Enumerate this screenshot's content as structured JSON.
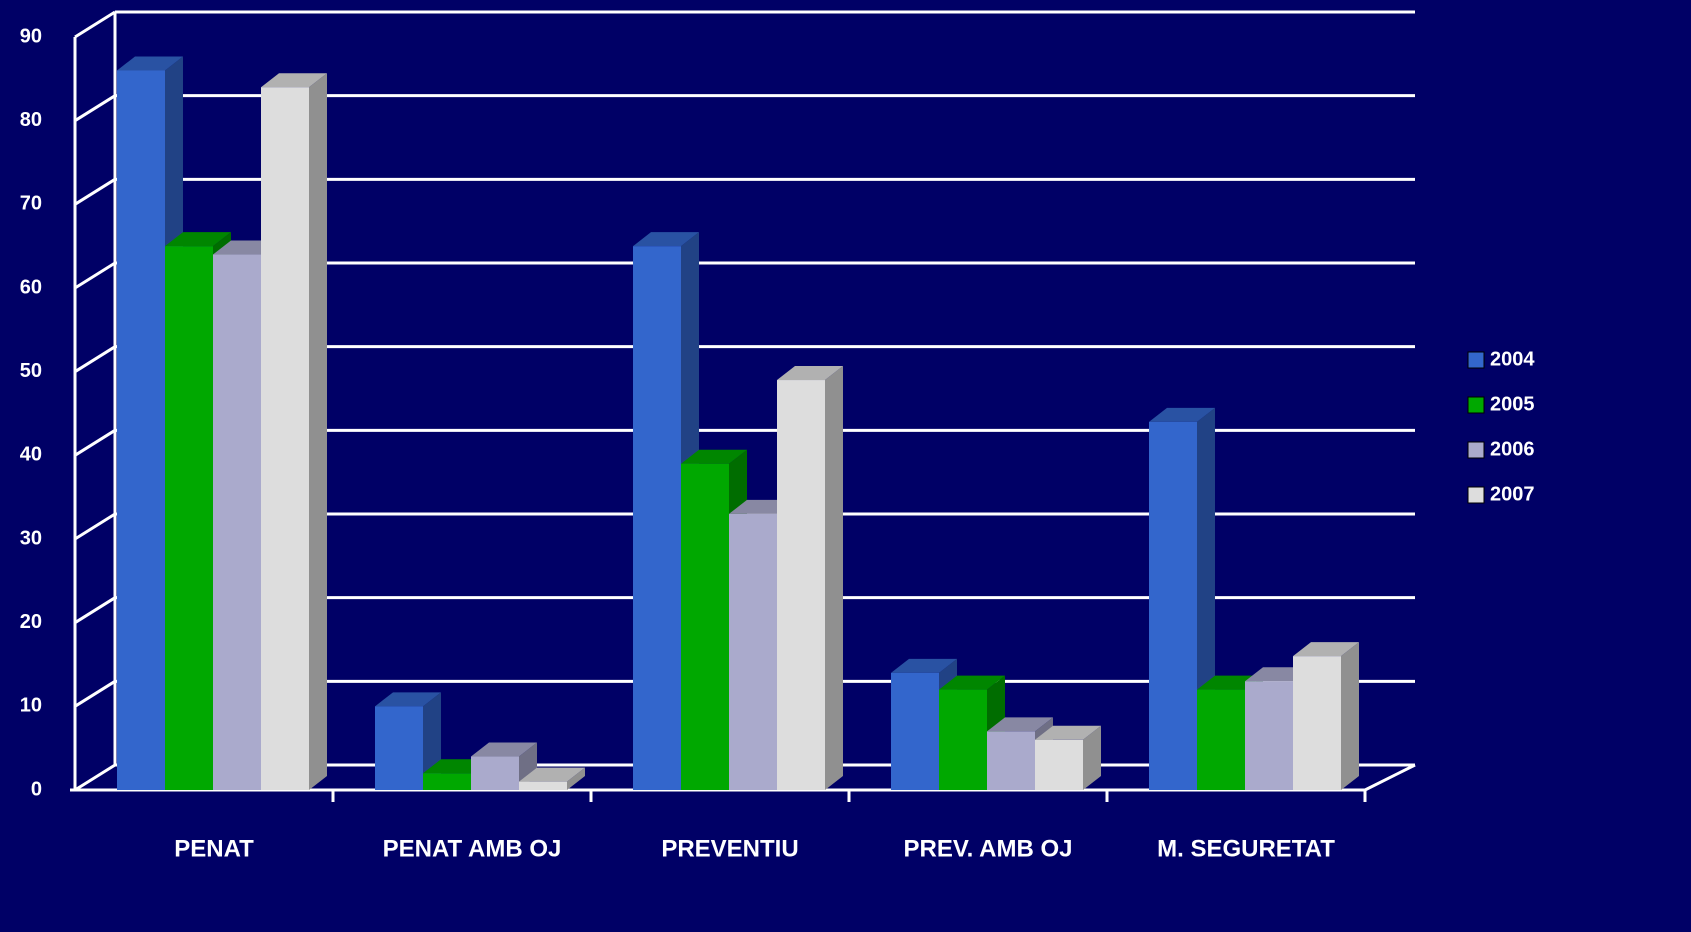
{
  "chart_data": {
    "type": "bar3d",
    "categories": [
      "PENAT",
      "PENAT AMB OJ",
      "PREVENTIU",
      "PREV. AMB OJ",
      "M. SEGURETAT"
    ],
    "series": [
      {
        "name": "2004",
        "color": "#3366cc",
        "values": [
          86,
          10,
          65,
          14,
          44
        ]
      },
      {
        "name": "2005",
        "color": "#00a800",
        "values": [
          65,
          2,
          39,
          12,
          12
        ]
      },
      {
        "name": "2006",
        "color": "#aaaacc",
        "values": [
          64,
          4,
          33,
          7,
          13
        ]
      },
      {
        "name": "2007",
        "color": "#dddddd",
        "values": [
          84,
          1,
          49,
          6,
          16
        ]
      }
    ],
    "ylim": [
      0,
      90
    ],
    "yticks": [
      0,
      10,
      20,
      30,
      40,
      50,
      60,
      70,
      80,
      90
    ],
    "grid": true,
    "legend": "right"
  }
}
